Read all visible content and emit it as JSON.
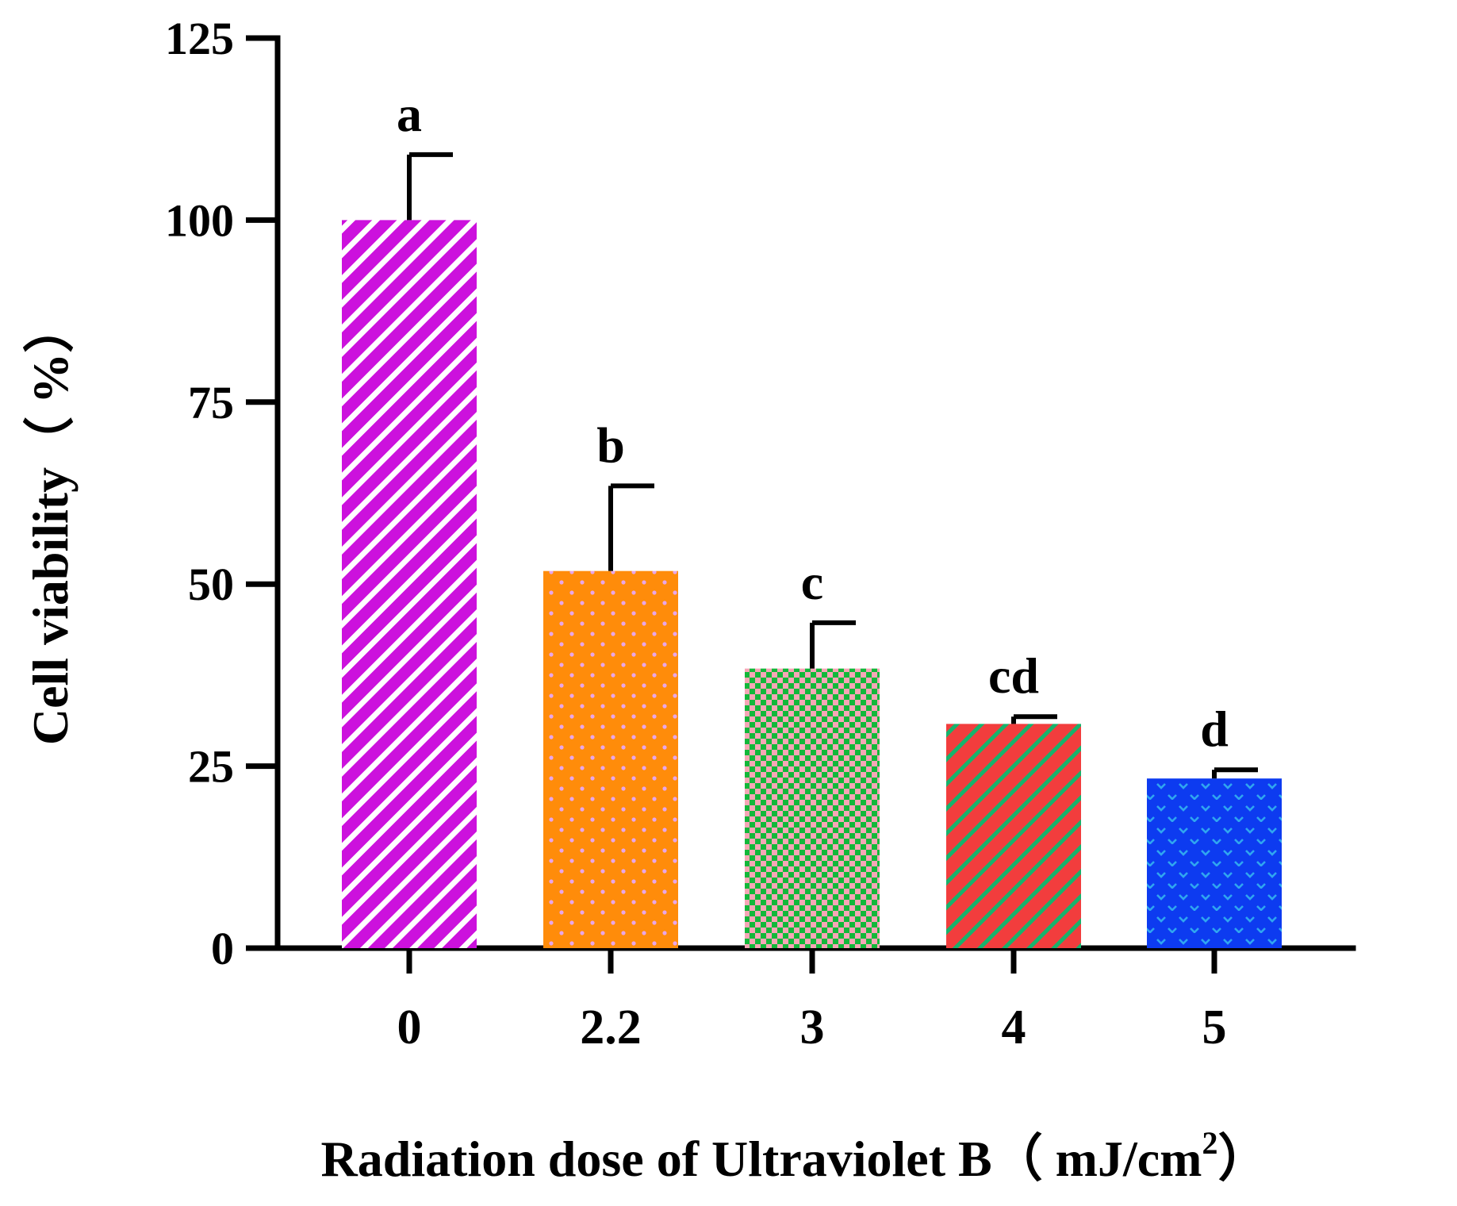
{
  "chart_data": {
    "type": "bar",
    "title": "",
    "xlabel": "Radiation dose of Ultraviolet B（ mJ/cm",
    "xlabel_superscript": "2",
    "xlabel_suffix": "）",
    "ylabel": "Cell viability（ %）",
    "ylim": [
      0,
      125
    ],
    "yticks": [
      0,
      25,
      50,
      75,
      100,
      125
    ],
    "grid": false,
    "legend": "none",
    "categories": [
      "0",
      "2.2",
      "3",
      "4",
      "5"
    ],
    "values": [
      100,
      51.8,
      38.4,
      30.8,
      23.3
    ],
    "errors": [
      9,
      11.7,
      6.3,
      1,
      1.2
    ],
    "significance": [
      "a",
      "b",
      "c",
      "cd",
      "d"
    ],
    "colors": [
      "#CC11DD",
      "#FF8C0A",
      "#12B83A",
      "#F23D3D",
      "#0D3BF0"
    ],
    "pattern_colors": [
      "#FFFFFF",
      "#E8A6E8",
      "#F7A6B6",
      "#16B36C",
      "#2FA6F0"
    ],
    "patterns": [
      "diagonal-stripes",
      "dots",
      "checker",
      "diagonal-stripes",
      "waves"
    ]
  }
}
